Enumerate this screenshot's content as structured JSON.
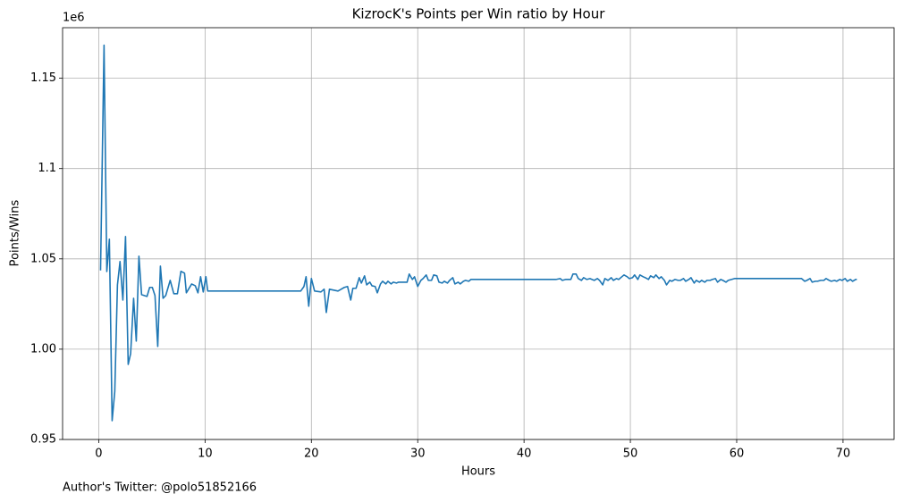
{
  "chart_data": {
    "type": "line",
    "title": "KizrocK's Points per Win ratio by Hour",
    "x_label": "Hours",
    "y_label": "Points/Wins",
    "y_offset_label": "1e6",
    "footnote": "Author's Twitter: @polo51852166",
    "color": "#1f77b4",
    "grid": true,
    "xlim": [
      -3.4,
      74.8
    ],
    "ylim": [
      0.95,
      1.178
    ],
    "xticks": [
      0,
      10,
      20,
      30,
      40,
      50,
      60,
      70
    ],
    "yticks": [
      0.95,
      {
        "value": 1,
        "label": "1.00"
      },
      1.05,
      1.1,
      1.15
    ],
    "x": [
      0.17,
      0.5,
      0.76,
      1.0,
      1.26,
      1.51,
      1.76,
      2.0,
      2.27,
      2.52,
      2.77,
      3.0,
      3.28,
      3.53,
      3.78,
      4.03,
      4.54,
      4.79,
      5.04,
      5.29,
      5.55,
      5.8,
      6.05,
      6.3,
      6.72,
      7.06,
      7.4,
      7.73,
      8.07,
      8.24,
      8.74,
      9.08,
      9.33,
      9.58,
      9.83,
      10.08,
      10.25,
      19.0,
      19.3,
      19.5,
      19.75,
      20.0,
      20.3,
      20.9,
      21.2,
      21.4,
      21.7,
      22.5,
      23.1,
      23.4,
      23.7,
      23.9,
      24.2,
      24.5,
      24.7,
      25.0,
      25.2,
      25.5,
      25.7,
      26.0,
      26.2,
      26.5,
      26.7,
      27.0,
      27.2,
      27.5,
      27.7,
      28.0,
      28.2,
      28.5,
      29.0,
      29.2,
      29.5,
      29.7,
      30.0,
      30.3,
      30.5,
      30.8,
      31.0,
      31.3,
      31.5,
      31.8,
      32.0,
      32.3,
      32.5,
      32.8,
      33.0,
      33.3,
      33.5,
      33.8,
      34.0,
      34.3,
      34.5,
      34.8,
      35.0,
      43.0,
      43.4,
      43.6,
      43.9,
      44.4,
      44.6,
      44.9,
      45.1,
      45.4,
      45.6,
      45.9,
      46.2,
      46.6,
      46.9,
      47.1,
      47.4,
      47.6,
      47.9,
      48.2,
      48.4,
      48.7,
      48.9,
      49.2,
      49.4,
      49.7,
      49.9,
      50.2,
      50.4,
      50.7,
      50.9,
      51.2,
      51.4,
      51.7,
      51.9,
      52.2,
      52.4,
      52.7,
      52.9,
      53.2,
      53.4,
      53.7,
      53.9,
      54.2,
      54.5,
      54.7,
      55.0,
      55.2,
      55.5,
      55.7,
      56.0,
      56.2,
      56.5,
      56.7,
      57.0,
      57.2,
      57.5,
      57.7,
      58.0,
      58.2,
      58.5,
      58.7,
      59.0,
      59.2,
      59.5,
      59.8,
      66.1,
      66.4,
      66.6,
      66.9,
      67.1,
      67.4,
      67.6,
      67.9,
      68.2,
      68.4,
      68.7,
      68.9,
      69.2,
      69.4,
      69.7,
      69.9,
      70.2,
      70.4,
      70.7,
      70.9,
      71.2,
      71.3
    ],
    "values": [
      1.0436,
      1.1683,
      1.043,
      1.0609,
      0.9604,
      0.9767,
      1.0356,
      1.0485,
      1.0272,
      1.0624,
      0.9916,
      0.9975,
      1.0282,
      1.0045,
      1.0515,
      1.0302,
      1.0292,
      1.0342,
      1.0342,
      1.0297,
      1.0015,
      1.046,
      1.0282,
      1.0297,
      1.0381,
      1.0307,
      1.0307,
      1.0431,
      1.0421,
      1.0312,
      1.0361,
      1.0351,
      1.0312,
      1.0401,
      1.0317,
      1.0401,
      1.0322,
      1.0322,
      1.0347,
      1.0401,
      1.0238,
      1.0391,
      1.0322,
      1.0317,
      1.0332,
      1.0203,
      1.0332,
      1.0322,
      1.0342,
      1.0347,
      1.0272,
      1.0337,
      1.0337,
      1.0396,
      1.0366,
      1.0406,
      1.0356,
      1.0371,
      1.0351,
      1.0347,
      1.0312,
      1.0361,
      1.0376,
      1.0361,
      1.0376,
      1.0361,
      1.0371,
      1.0366,
      1.0371,
      1.0371,
      1.0371,
      1.0416,
      1.0386,
      1.0401,
      1.0347,
      1.0381,
      1.0391,
      1.0411,
      1.0381,
      1.0381,
      1.0411,
      1.0406,
      1.0371,
      1.0366,
      1.0376,
      1.0366,
      1.0381,
      1.0396,
      1.0361,
      1.0371,
      1.0361,
      1.0376,
      1.0381,
      1.0376,
      1.0386,
      1.0386,
      1.0391,
      1.0381,
      1.0386,
      1.0386,
      1.0416,
      1.0416,
      1.0391,
      1.0381,
      1.0396,
      1.0386,
      1.0391,
      1.0381,
      1.0391,
      1.0381,
      1.0356,
      1.0391,
      1.0381,
      1.0396,
      1.0381,
      1.0391,
      1.0386,
      1.0401,
      1.0411,
      1.0401,
      1.0391,
      1.0396,
      1.0411,
      1.0386,
      1.0411,
      1.0401,
      1.0396,
      1.0386,
      1.0406,
      1.0396,
      1.0411,
      1.0391,
      1.0401,
      1.0381,
      1.0356,
      1.0381,
      1.0376,
      1.0386,
      1.0381,
      1.0381,
      1.0391,
      1.0376,
      1.0386,
      1.0396,
      1.0366,
      1.0381,
      1.0371,
      1.0381,
      1.0371,
      1.0381,
      1.0381,
      1.0386,
      1.0391,
      1.0371,
      1.0386,
      1.0381,
      1.0371,
      1.0381,
      1.0386,
      1.0391,
      1.0391,
      1.0376,
      1.0381,
      1.0391,
      1.0371,
      1.0376,
      1.0376,
      1.0381,
      1.0381,
      1.0391,
      1.0381,
      1.0376,
      1.0381,
      1.0376,
      1.0386,
      1.0381,
      1.0391,
      1.0376,
      1.0386,
      1.0376,
      1.0386,
      1.0386
    ]
  }
}
